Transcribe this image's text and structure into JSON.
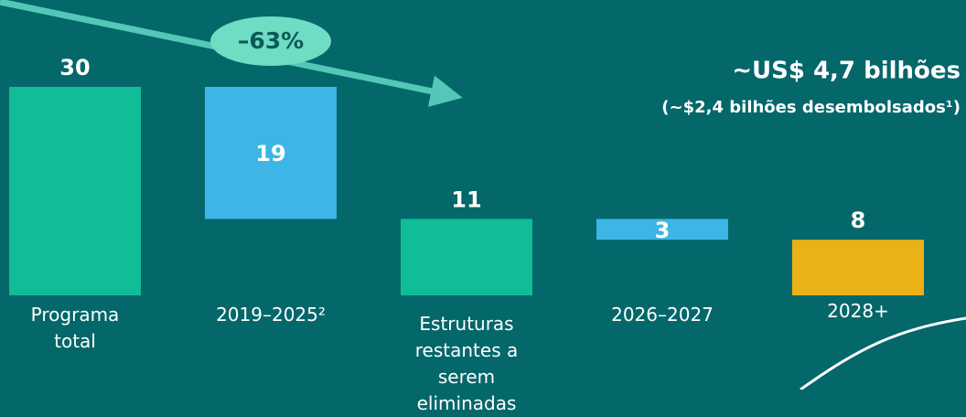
{
  "chart_data": {
    "type": "waterfall",
    "categories": [
      "Programa total",
      "2019–2025²",
      "Estruturas restantes a serem eliminadas",
      "2026–2027",
      "2028+"
    ],
    "values": [
      30,
      19,
      11,
      3,
      8
    ],
    "kinds": [
      "total",
      "decrease",
      "total",
      "decrease",
      "total"
    ],
    "colors": [
      "#10bd96",
      "#3db5e6",
      "#10bd96",
      "#3db5e6",
      "#eab216"
    ],
    "ylim": [
      0,
      30
    ],
    "annotations": [
      "–63%",
      "~US$ 4,7 bilhões",
      "(~$2,4 bilhões desembolsados¹)"
    ]
  }
}
